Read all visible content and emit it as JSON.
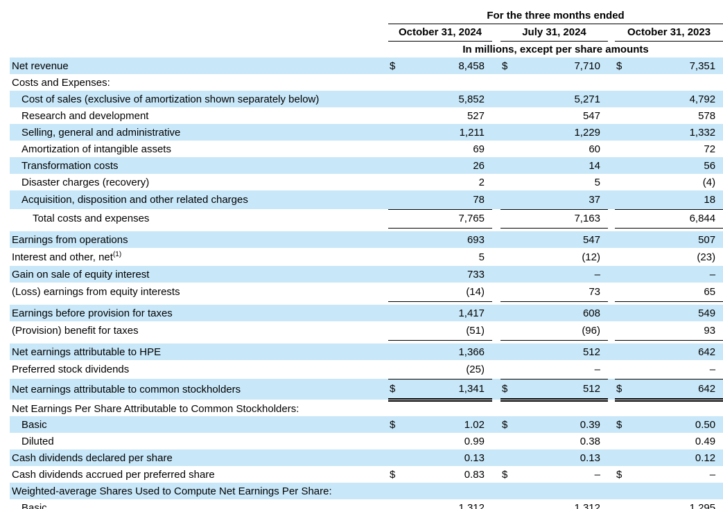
{
  "table": {
    "title": "For the three months ended",
    "columns": [
      "October 31, 2024",
      "July 31, 2024",
      "October 31, 2023"
    ],
    "unit_note": "In millions, except per share amounts",
    "currency_symbol": "$",
    "colors": {
      "row_highlight": "#c8e7f8",
      "text": "#000000",
      "rule": "#000000"
    },
    "rows": [
      {
        "label": "Net revenue",
        "indent": 0,
        "shaded": true,
        "dollar": true,
        "values": [
          "8,458",
          "7,710",
          "7,351"
        ]
      },
      {
        "label": "Costs and Expenses:",
        "indent": 0,
        "shaded": false,
        "values": null
      },
      {
        "label": "Cost of sales (exclusive of amortization shown separately below)",
        "indent": 1,
        "shaded": true,
        "values": [
          "5,852",
          "5,271",
          "4,792"
        ]
      },
      {
        "label": "Research and development",
        "indent": 1,
        "shaded": false,
        "values": [
          "527",
          "547",
          "578"
        ]
      },
      {
        "label": "Selling, general and administrative",
        "indent": 1,
        "shaded": true,
        "values": [
          "1,211",
          "1,229",
          "1,332"
        ]
      },
      {
        "label": "Amortization of intangible assets",
        "indent": 1,
        "shaded": false,
        "values": [
          "69",
          "60",
          "72"
        ]
      },
      {
        "label": "Transformation costs",
        "indent": 1,
        "shaded": true,
        "values": [
          "26",
          "14",
          "56"
        ]
      },
      {
        "label": "Disaster charges (recovery)",
        "indent": 1,
        "shaded": false,
        "values": [
          "2",
          "5",
          "(4)"
        ]
      },
      {
        "label": "Acquisition, disposition and other related charges",
        "indent": 1,
        "shaded": true,
        "values": [
          "78",
          "37",
          "18"
        ],
        "border": "bottom"
      },
      {
        "label": "Total costs and expenses",
        "indent": 2,
        "shaded": false,
        "values": [
          "7,765",
          "7,163",
          "6,844"
        ],
        "border": "bottom",
        "gap_after": true
      },
      {
        "label": "Earnings from operations",
        "indent": 0,
        "shaded": true,
        "values": [
          "693",
          "547",
          "507"
        ]
      },
      {
        "label": "Interest and other, net",
        "label_sup": "(1)",
        "indent": 0,
        "shaded": false,
        "values": [
          "5",
          "(12)",
          "(23)"
        ]
      },
      {
        "label": "Gain on sale of equity interest",
        "indent": 0,
        "shaded": true,
        "values": [
          "733",
          "–",
          "–"
        ]
      },
      {
        "label": "(Loss) earnings from equity interests",
        "indent": 0,
        "shaded": false,
        "values": [
          "(14)",
          "73",
          "65"
        ],
        "border": "bottom",
        "gap_after": true
      },
      {
        "label": "Earnings before provision for taxes",
        "indent": 0,
        "shaded": true,
        "values": [
          "1,417",
          "608",
          "549"
        ]
      },
      {
        "label": "(Provision) benefit for taxes",
        "indent": 0,
        "shaded": false,
        "values": [
          "(51)",
          "(96)",
          "93"
        ],
        "border": "bottom",
        "gap_after": true
      },
      {
        "label": "Net earnings attributable to HPE",
        "indent": 0,
        "shaded": true,
        "values": [
          "1,366",
          "512",
          "642"
        ]
      },
      {
        "label": "Preferred stock dividends",
        "indent": 0,
        "shaded": false,
        "values": [
          "(25)",
          "–",
          "–"
        ],
        "border": "bottom"
      },
      {
        "label": "Net earnings attributable to common stockholders",
        "indent": 0,
        "shaded": true,
        "dollar": true,
        "values": [
          "1,341",
          "512",
          "642"
        ],
        "border": "double"
      },
      {
        "label": "Net Earnings Per Share Attributable to Common Stockholders:",
        "indent": 0,
        "shaded": false,
        "values": null
      },
      {
        "label": "Basic",
        "indent": 1,
        "shaded": true,
        "dollar": true,
        "values": [
          "1.02",
          "0.39",
          "0.50"
        ]
      },
      {
        "label": "Diluted",
        "indent": 1,
        "shaded": false,
        "values": [
          "0.99",
          "0.38",
          "0.49"
        ]
      },
      {
        "label": "Cash dividends declared per share",
        "indent": 0,
        "shaded": true,
        "values": [
          "0.13",
          "0.13",
          "0.12"
        ]
      },
      {
        "label": "Cash dividends accrued per preferred share",
        "indent": 0,
        "shaded": false,
        "dollar": true,
        "values": [
          "0.83",
          "–",
          "–"
        ]
      },
      {
        "label": "Weighted-average Shares Used to Compute Net Earnings Per Share:",
        "indent": 0,
        "shaded": true,
        "values": null
      },
      {
        "label": "Basic",
        "indent": 1,
        "shaded": false,
        "values": [
          "1,312",
          "1,312",
          "1,295"
        ]
      }
    ]
  }
}
